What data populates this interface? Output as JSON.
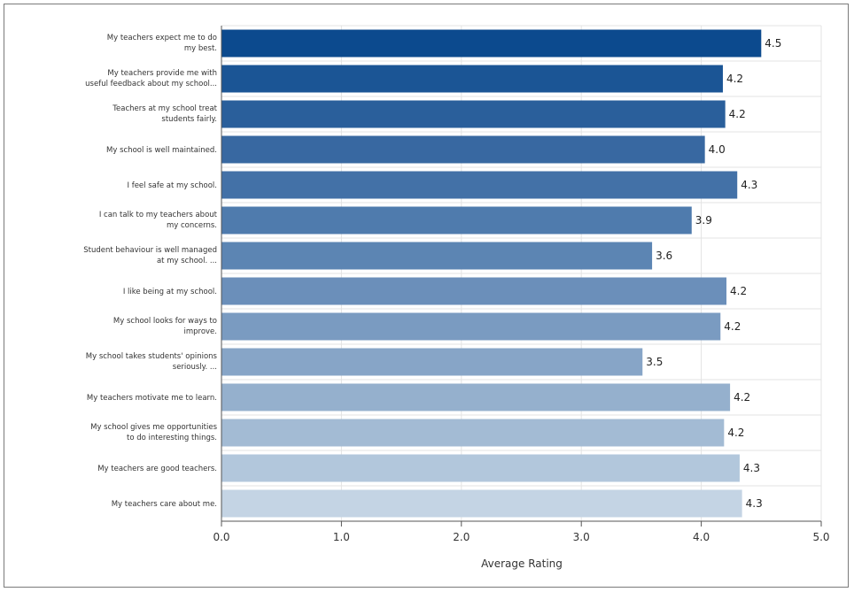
{
  "chart_data": {
    "type": "bar",
    "orientation": "horizontal",
    "categories": [
      [
        "My teachers expect me to do",
        "my best."
      ],
      [
        "My teachers provide me with",
        "useful feedback about my school..."
      ],
      [
        "Teachers at my school treat",
        "students fairly."
      ],
      [
        "My school is well maintained."
      ],
      [
        "I feel safe at my school."
      ],
      [
        "I can talk to my teachers about",
        "my concerns."
      ],
      [
        "Student behaviour is well managed",
        "at my school.     ..."
      ],
      [
        "I like being at my school."
      ],
      [
        "My school looks for ways to",
        "improve."
      ],
      [
        "My school takes students' opinions",
        "seriously.     ..."
      ],
      [
        "My teachers motivate me to learn."
      ],
      [
        "My school gives me opportunities",
        "to do interesting things."
      ],
      [
        "My teachers are good teachers."
      ],
      [
        "My teachers care about me."
      ]
    ],
    "values": [
      4.5,
      4.18,
      4.2,
      4.03,
      4.3,
      3.92,
      3.59,
      4.21,
      4.16,
      3.51,
      4.24,
      4.19,
      4.32,
      4.34
    ],
    "value_labels": [
      "4.5",
      "4.2",
      "4.2",
      "4.0",
      "4.3",
      "3.9",
      "3.6",
      "4.2",
      "4.2",
      "3.5",
      "4.2",
      "4.2",
      "4.3",
      "4.3"
    ],
    "colors": [
      "#0c4a8e",
      "#1b5595",
      "#2a5f9b",
      "#3868a1",
      "#4371a7",
      "#4f7bad",
      "#5c85b3",
      "#6b8fba",
      "#7a9bc1",
      "#87a5c7",
      "#95b0cd",
      "#a3bbd4",
      "#b2c7dc",
      "#c4d4e4"
    ],
    "xlabel": "Average Rating",
    "xlim": [
      0,
      5
    ],
    "xticks": [
      "0.0",
      "1.0",
      "2.0",
      "3.0",
      "4.0",
      "5.0"
    ],
    "grid": true
  }
}
